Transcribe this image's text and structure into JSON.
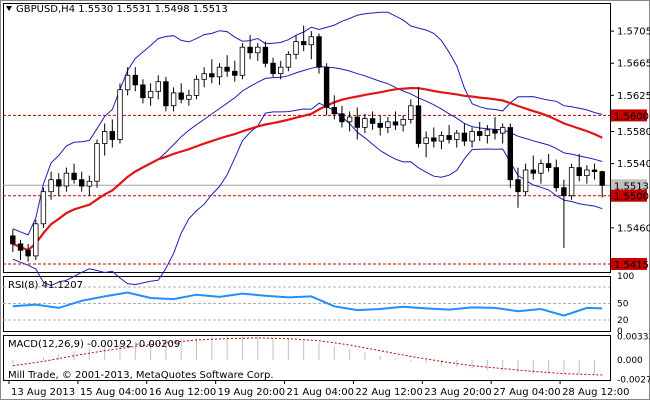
{
  "chart_data": [
    {
      "type": "candlestick",
      "title": "GBPUSD,H4",
      "header_ohlc": [
        "1.5530",
        "1.5531",
        "1.5498",
        "1.5513"
      ],
      "ylim": [
        1.5405,
        1.574
      ],
      "y_ticks": [
        "1.5705",
        "1.5665",
        "1.5625",
        "1.5580",
        "1.5540",
        "1.5460"
      ],
      "price_labels": [
        {
          "value": 1.56,
          "text": "1.5600",
          "style": "level"
        },
        {
          "value": 1.5513,
          "text": "1.5513",
          "style": "current"
        },
        {
          "value": 1.55,
          "text": "1.5500",
          "style": "level"
        },
        {
          "value": 1.5415,
          "text": "1.5415",
          "style": "level"
        }
      ],
      "levels": [
        1.56,
        1.55,
        1.5415
      ],
      "current_price": 1.5513,
      "x_ticks": [
        "13 Aug 2013",
        "15 Aug 04:00",
        "16 Aug 12:00",
        "19 Aug 20:00",
        "21 Aug 04:00",
        "22 Aug 12:00",
        "23 Aug 20:00",
        "27 Aug 04:00",
        "28 Aug 12:00"
      ],
      "candles": [
        [
          1.545,
          1.5458,
          1.543,
          1.544
        ],
        [
          1.544,
          1.5445,
          1.542,
          1.5432
        ],
        [
          1.5432,
          1.544,
          1.5418,
          1.5425
        ],
        [
          1.5425,
          1.547,
          1.542,
          1.5465
        ],
        [
          1.5465,
          1.551,
          1.546,
          1.5505
        ],
        [
          1.5505,
          1.553,
          1.5495,
          1.552
        ],
        [
          1.552,
          1.5528,
          1.55,
          1.5512
        ],
        [
          1.5512,
          1.5535,
          1.5505,
          1.5528
        ],
        [
          1.5528,
          1.554,
          1.5515,
          1.552
        ],
        [
          1.552,
          1.553,
          1.5505,
          1.5512
        ],
        [
          1.5512,
          1.5525,
          1.55,
          1.5518
        ],
        [
          1.5518,
          1.557,
          1.551,
          1.5565
        ],
        [
          1.5565,
          1.559,
          1.555,
          1.558
        ],
        [
          1.558,
          1.5595,
          1.556,
          1.557
        ],
        [
          1.557,
          1.564,
          1.5565,
          1.5632
        ],
        [
          1.5632,
          1.566,
          1.5625,
          1.565
        ],
        [
          1.565,
          1.566,
          1.563,
          1.5638
        ],
        [
          1.5638,
          1.5645,
          1.5615,
          1.5622
        ],
        [
          1.5622,
          1.564,
          1.5612,
          1.563
        ],
        [
          1.563,
          1.565,
          1.562,
          1.5642
        ],
        [
          1.5642,
          1.5648,
          1.5605,
          1.5612
        ],
        [
          1.5612,
          1.5635,
          1.5605,
          1.5628
        ],
        [
          1.5628,
          1.564,
          1.5615,
          1.562
        ],
        [
          1.562,
          1.5632,
          1.5612,
          1.5625
        ],
        [
          1.5625,
          1.565,
          1.562,
          1.5645
        ],
        [
          1.5645,
          1.566,
          1.5635,
          1.5652
        ],
        [
          1.5652,
          1.567,
          1.564,
          1.5648
        ],
        [
          1.5648,
          1.5665,
          1.5638,
          1.566
        ],
        [
          1.566,
          1.5675,
          1.5648,
          1.5655
        ],
        [
          1.5655,
          1.5668,
          1.5642,
          1.565
        ],
        [
          1.565,
          1.569,
          1.5645,
          1.5685
        ],
        [
          1.5685,
          1.57,
          1.567,
          1.5678
        ],
        [
          1.5678,
          1.569,
          1.5668,
          1.5685
        ],
        [
          1.5685,
          1.5692,
          1.566,
          1.5665
        ],
        [
          1.5665,
          1.5672,
          1.5648,
          1.5652
        ],
        [
          1.5652,
          1.5668,
          1.5645,
          1.566
        ],
        [
          1.566,
          1.568,
          1.5655,
          1.5676
        ],
        [
          1.5676,
          1.57,
          1.567,
          1.5692
        ],
        [
          1.5692,
          1.5712,
          1.568,
          1.5688
        ],
        [
          1.5688,
          1.5705,
          1.567,
          1.5698
        ],
        [
          1.5698,
          1.5702,
          1.5652,
          1.566
        ],
        [
          1.566,
          1.5665,
          1.56,
          1.561
        ],
        [
          1.561,
          1.5625,
          1.5595,
          1.5602
        ],
        [
          1.5602,
          1.5612,
          1.5585,
          1.5592
        ],
        [
          1.5592,
          1.5605,
          1.558,
          1.5598
        ],
        [
          1.5598,
          1.561,
          1.557,
          1.5585
        ],
        [
          1.5585,
          1.5602,
          1.5578,
          1.5596
        ],
        [
          1.5596,
          1.5605,
          1.5582,
          1.559
        ],
        [
          1.559,
          1.56,
          1.5575,
          1.5585
        ],
        [
          1.5585,
          1.5598,
          1.5578,
          1.5592
        ],
        [
          1.5592,
          1.5605,
          1.5582,
          1.5588
        ],
        [
          1.5588,
          1.56,
          1.558,
          1.5595
        ],
        [
          1.5595,
          1.562,
          1.559,
          1.5612
        ],
        [
          1.5612,
          1.5635,
          1.556,
          1.5565
        ],
        [
          1.5565,
          1.558,
          1.5548,
          1.5572
        ],
        [
          1.5572,
          1.5585,
          1.556,
          1.5568
        ],
        [
          1.5568,
          1.558,
          1.5558,
          1.5575
        ],
        [
          1.5575,
          1.5588,
          1.5565,
          1.557
        ],
        [
          1.557,
          1.5582,
          1.556,
          1.5578
        ],
        [
          1.5578,
          1.559,
          1.5562,
          1.5568
        ],
        [
          1.5568,
          1.5585,
          1.556,
          1.558
        ],
        [
          1.558,
          1.5592,
          1.5568,
          1.5575
        ],
        [
          1.5575,
          1.5588,
          1.5565,
          1.5582
        ],
        [
          1.5582,
          1.5598,
          1.557,
          1.5578
        ],
        [
          1.5578,
          1.559,
          1.5565,
          1.5585
        ],
        [
          1.5585,
          1.559,
          1.551,
          1.552
        ],
        [
          1.552,
          1.5535,
          1.5485,
          1.5505
        ],
        [
          1.5505,
          1.554,
          1.55,
          1.5532
        ],
        [
          1.5532,
          1.555,
          1.552,
          1.5528
        ],
        [
          1.5528,
          1.5545,
          1.5515,
          1.554
        ],
        [
          1.554,
          1.5552,
          1.553,
          1.5535
        ],
        [
          1.5535,
          1.5545,
          1.5505,
          1.551
        ],
        [
          1.551,
          1.552,
          1.5435,
          1.55
        ],
        [
          1.55,
          1.554,
          1.5495,
          1.5535
        ],
        [
          1.5535,
          1.5552,
          1.5518,
          1.5525
        ],
        [
          1.5525,
          1.5538,
          1.5515,
          1.5532
        ],
        [
          1.5532,
          1.554,
          1.552,
          1.553
        ],
        [
          1.553,
          1.5531,
          1.5498,
          1.5513
        ]
      ]
    },
    {
      "type": "line",
      "label": "RSI(8) 41.1207",
      "ylim": [
        0,
        100
      ],
      "y_ticks": [
        "100",
        "50",
        "20",
        "0"
      ],
      "levels": [
        80,
        50,
        20
      ],
      "x": [
        0,
        3,
        6,
        9,
        12,
        15,
        18,
        21,
        24,
        27,
        30,
        33,
        36,
        39,
        42,
        45,
        48,
        51,
        54,
        57,
        60,
        63,
        66,
        69,
        72,
        75,
        77
      ],
      "values": [
        45,
        48,
        42,
        55,
        63,
        70,
        60,
        58,
        66,
        62,
        68,
        64,
        61,
        63,
        45,
        38,
        40,
        44,
        41,
        39,
        43,
        42,
        36,
        40,
        28,
        42,
        41
      ]
    },
    {
      "type": "histogram",
      "label": "MACD(12,26,9) -0.00192 -0.00209",
      "ylim": [
        -0.0028,
        0.0035
      ],
      "y_ticks": [
        "0.003320",
        "0.000",
        "-0.00271"
      ],
      "x": [
        0,
        4,
        8,
        12,
        16,
        20,
        24,
        28,
        32,
        36,
        40,
        44,
        48,
        52,
        56,
        60,
        64,
        68,
        72,
        77
      ],
      "macd": [
        -0.0005,
        0.0004,
        0.0012,
        0.0019,
        0.0025,
        0.0029,
        0.0031,
        0.0033,
        0.0032,
        0.003,
        0.0024,
        0.0015,
        0.0006,
        -0.0002,
        -0.0008,
        -0.0012,
        -0.0016,
        -0.0019,
        -0.0019,
        -0.0019
      ],
      "signal": [
        -0.0008,
        -0.0002,
        0.0006,
        0.0013,
        0.0019,
        0.0024,
        0.0028,
        0.003,
        0.0031,
        0.003,
        0.0027,
        0.0021,
        0.0013,
        0.0005,
        -0.0002,
        -0.0008,
        -0.0012,
        -0.0016,
        -0.0019,
        -0.0021
      ]
    }
  ],
  "footer": "Mill Trade, © 2001-2013, MetaQuotes Software Corp.",
  "colors": {
    "bull": "#ffffff",
    "bear": "#000000",
    "bollinger": "#1f1fb4",
    "moving_average": "#e01616",
    "level_line": "#c80000",
    "rsi_line": "#1e90ff",
    "grid": "#d8d8d8"
  }
}
